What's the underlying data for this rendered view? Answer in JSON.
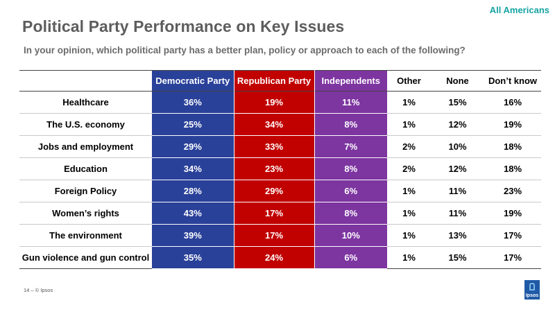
{
  "tag": "All Americans",
  "title": "Political Party Performance on Key Issues",
  "subtitle": "In your opinion, which political party has a better plan, policy or approach to each of the following?",
  "columns": [
    "Democratic Party",
    "Republican Party",
    "Independents",
    "Other",
    "None",
    "Don’t know"
  ],
  "rows": [
    {
      "issue": "Healthcare",
      "values": [
        "36%",
        "19%",
        "11%",
        "1%",
        "15%",
        "16%"
      ]
    },
    {
      "issue": "The U.S. economy",
      "values": [
        "25%",
        "34%",
        "8%",
        "1%",
        "12%",
        "19%"
      ]
    },
    {
      "issue": "Jobs and employment",
      "values": [
        "29%",
        "33%",
        "7%",
        "2%",
        "10%",
        "18%"
      ]
    },
    {
      "issue": "Education",
      "values": [
        "34%",
        "23%",
        "8%",
        "2%",
        "12%",
        "18%"
      ]
    },
    {
      "issue": "Foreign Policy",
      "values": [
        "28%",
        "29%",
        "6%",
        "1%",
        "11%",
        "23%"
      ]
    },
    {
      "issue": "Women’s rights",
      "values": [
        "43%",
        "17%",
        "8%",
        "1%",
        "11%",
        "19%"
      ]
    },
    {
      "issue": "The environment",
      "values": [
        "39%",
        "17%",
        "10%",
        "1%",
        "13%",
        "17%"
      ]
    },
    {
      "issue": "Gun violence and gun control",
      "values": [
        "35%",
        "24%",
        "6%",
        "1%",
        "15%",
        "17%"
      ]
    }
  ],
  "footer": "14 ‒  © Ipsos",
  "logo_text": "Ipsos",
  "colors": {
    "democratic": "#2a4199",
    "republican": "#c10000",
    "independents": "#7d35a0",
    "accent": "#16a3a3"
  }
}
